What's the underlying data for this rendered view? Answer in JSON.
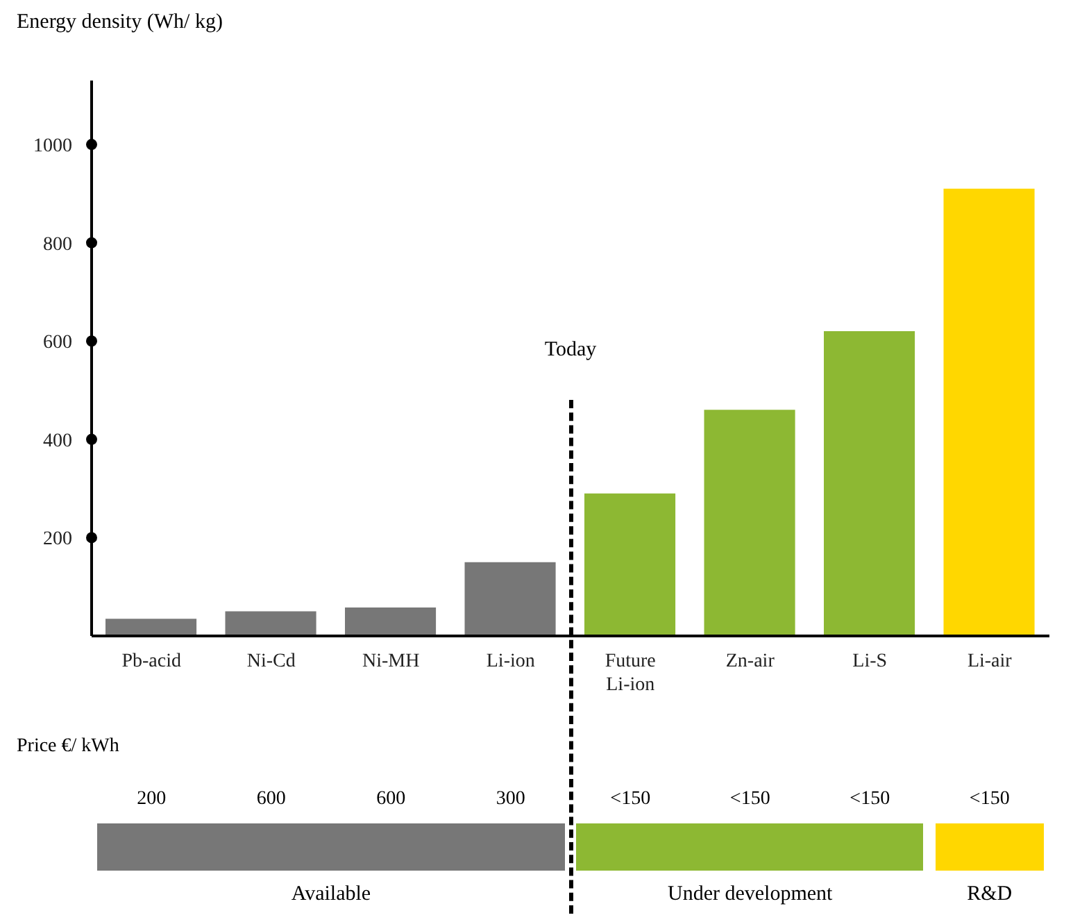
{
  "chart_data": {
    "type": "bar",
    "ylabel": "Energy density (Wh/ kg)",
    "categories": [
      "Pb-acid",
      "Ni-Cd",
      "Ni-MH",
      "Li-ion",
      "Future Li-ion",
      "Zn-air",
      "Li-S",
      "Li-air"
    ],
    "values": [
      35,
      50,
      58,
      150,
      290,
      460,
      620,
      910
    ],
    "colors": [
      "#777777",
      "#777777",
      "#777777",
      "#777777",
      "#8db833",
      "#8db833",
      "#8db833",
      "#ffd700"
    ],
    "ylim": [
      0,
      1130
    ],
    "yticks": [
      200,
      400,
      600,
      800,
      1000
    ],
    "grid": false,
    "legend": false,
    "annotations": [
      "Today",
      "Price €/ kWh",
      "200",
      "600",
      "600",
      "300",
      "<150",
      "<150",
      "<150",
      "<150",
      "Available",
      "Under development",
      "R&D"
    ]
  }
}
